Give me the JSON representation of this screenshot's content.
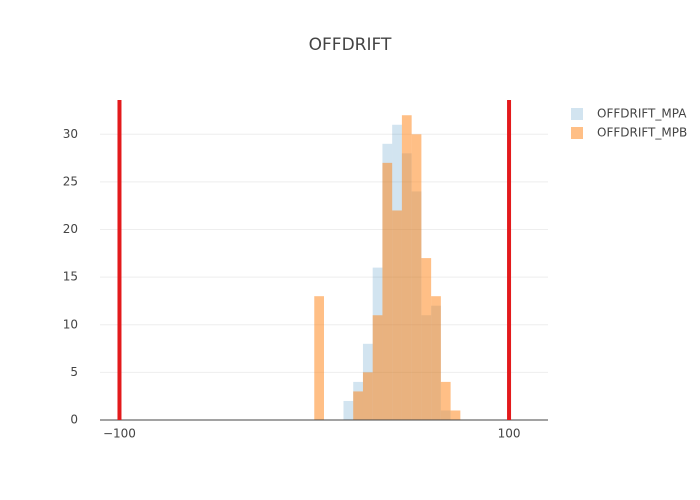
{
  "chart_data": {
    "type": "histogram",
    "title": "OFFDRIFT",
    "bins": [
      0,
      5,
      10,
      15,
      20,
      25,
      30,
      35,
      40,
      45,
      50,
      55,
      60,
      65,
      70,
      75
    ],
    "series": [
      {
        "name": "OFFDRIFT_MPA",
        "color": "#1f77b4",
        "opacity": 0.2,
        "values": [
          0,
          0,
          0,
          2,
          4,
          8,
          16,
          29,
          31,
          28,
          24,
          11,
          12,
          1,
          0
        ]
      },
      {
        "name": "OFFDRIFT_MPB",
        "color": "#ff7f0e",
        "opacity": 0.5,
        "values": [
          13,
          0,
          0,
          0,
          3,
          5,
          11,
          27,
          22,
          32,
          30,
          17,
          13,
          4,
          1
        ]
      }
    ],
    "vlines": [
      -100,
      100
    ],
    "vline_color": "#e31a1c",
    "xlim": [
      -110,
      120
    ],
    "xticks": [
      {
        "value": -100,
        "label": "−100"
      },
      100
    ],
    "ylim": [
      0,
      33.6
    ],
    "yticks": [
      0,
      5,
      10,
      15,
      20,
      25,
      30
    ],
    "grid": true,
    "legend": "right"
  }
}
